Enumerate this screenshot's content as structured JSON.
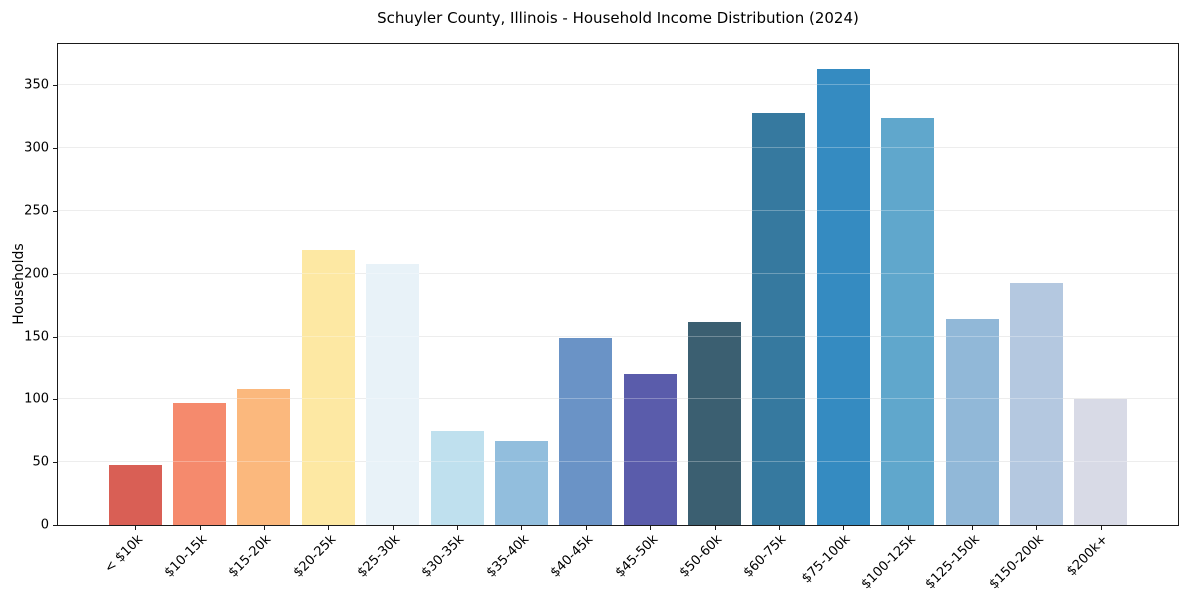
{
  "page": {
    "background": "#ffffff"
  },
  "chart_data": {
    "type": "bar",
    "title": "Schuyler County, Illinois - Household Income Distribution (2024)",
    "xlabel": "",
    "ylabel": "Households",
    "categories": [
      "< $10k",
      "$10-15k",
      "$15-20k",
      "$20-25k",
      "$25-30k",
      "$30-35k",
      "$35-40k",
      "$40-45k",
      "$45-50k",
      "$50-60k",
      "$60-75k",
      "$75-100k",
      "$100-125k",
      "$125-150k",
      "$150-200k",
      "$200k+"
    ],
    "values": [
      48,
      97,
      108,
      219,
      208,
      75,
      67,
      149,
      120,
      162,
      328,
      363,
      324,
      164,
      193,
      100
    ],
    "bar_colors": [
      "#d95f55",
      "#f58a6d",
      "#fbb87d",
      "#fde8a3",
      "#e8f2f8",
      "#bfe0ee",
      "#92bedd",
      "#6a93c6",
      "#5a5cab",
      "#3b5f71",
      "#36799f",
      "#358bc1",
      "#60a7cc",
      "#91b8d8",
      "#b4c8e0",
      "#d8dae6"
    ],
    "yticks": [
      0,
      50,
      100,
      150,
      200,
      250,
      300,
      350
    ],
    "ylim": [
      0,
      383
    ],
    "grid": "horizontal",
    "grid_color": "#e7e7e7",
    "spine_color": "#1a1a1a",
    "text_color": "#000000",
    "legend": "none"
  }
}
